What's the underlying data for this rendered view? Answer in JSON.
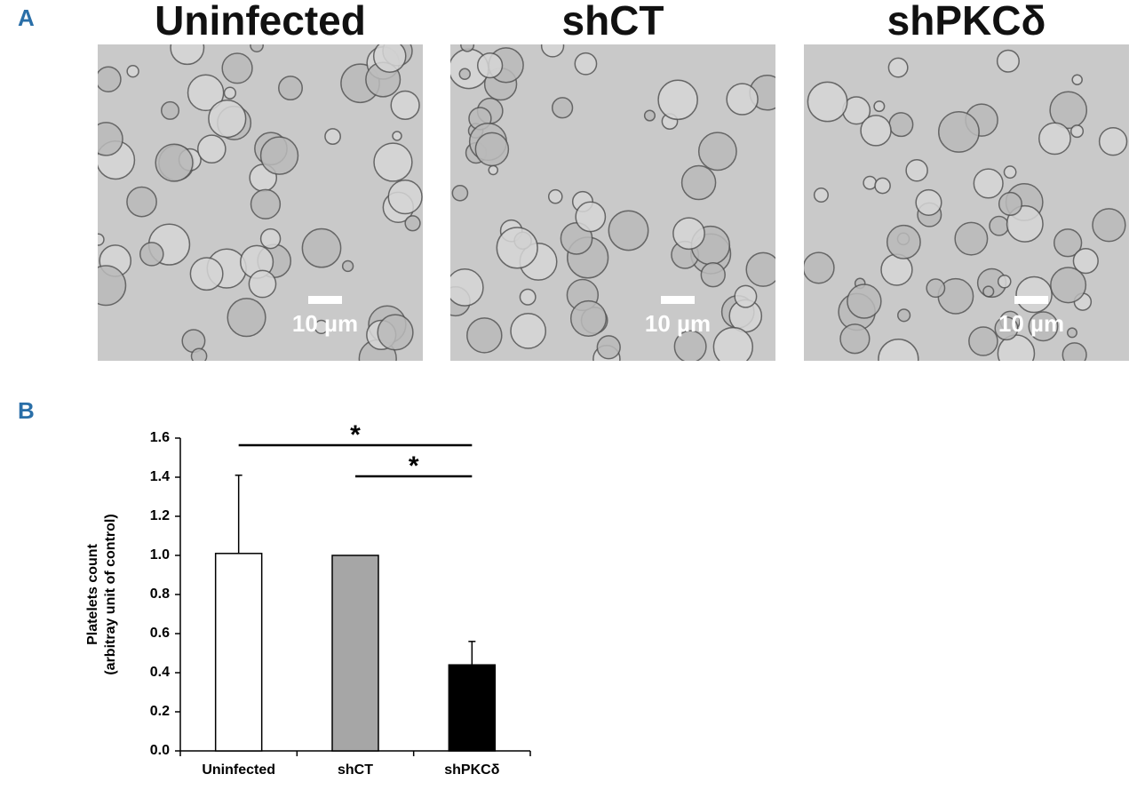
{
  "panel_a": {
    "label": "A",
    "images": [
      {
        "title": "Uninfected",
        "scale_label": "10 µm"
      },
      {
        "title": "shCT",
        "scale_label": "10 µm"
      },
      {
        "title": "shPKCδ",
        "scale_label": "10 µm"
      }
    ]
  },
  "panel_b": {
    "label": "B"
  },
  "chart_data": {
    "type": "bar",
    "y_label": [
      "Platelets count",
      "(arbitray unit of control)"
    ],
    "categories": [
      "Uninfected",
      "shCT",
      "shPKCδ"
    ],
    "values": [
      1.01,
      1.0,
      0.44
    ],
    "errors": [
      0.4,
      null,
      0.12
    ],
    "colors": [
      "#ffffff",
      "#a6a6a6",
      "#000000"
    ],
    "ylim": [
      0,
      1.6
    ],
    "yticks": [
      {
        "value": 0,
        "label": "0.0"
      },
      0.2,
      0.4,
      0.6,
      0.8,
      {
        "value": 1,
        "label": "1.0"
      },
      1.2,
      1.4,
      1.6
    ],
    "annotations": [
      {
        "text": "*",
        "from": "Uninfected",
        "to": "shPKCδ"
      },
      {
        "text": "*",
        "from": "shCT",
        "to": "shPKCδ"
      }
    ]
  }
}
